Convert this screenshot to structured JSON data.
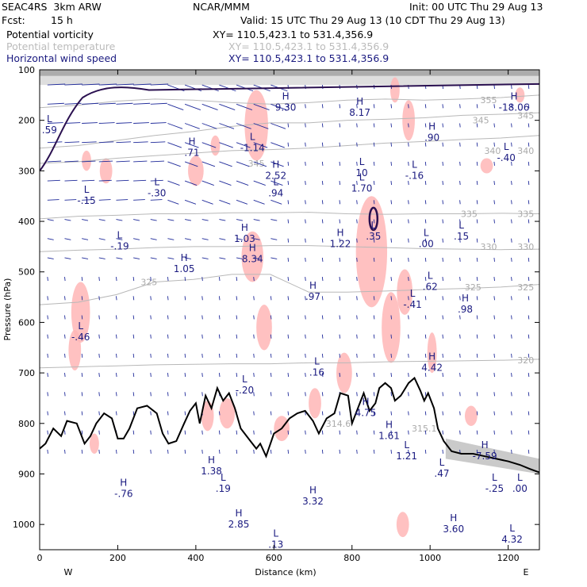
{
  "header": {
    "model": "SEAC4RS  3km ARW",
    "org": "NCAR/MMM",
    "init": "Init: 00 UTC Thu 29 Aug 13",
    "fcst_label": "Fcst:",
    "fcst_value": "15 h",
    "valid": "Valid: 15 UTC Thu 29 Aug 13 (10 CDT Thu 29 Aug 13)"
  },
  "fields": [
    {
      "name": "Potential vorticity",
      "xy": "XY= 110.5,423.1 to 531.4,356.9",
      "color": "#000000"
    },
    {
      "name": "Potential temperature",
      "xy": "XY= 110.5,423.1 to 531.4,356.9",
      "color": "#bbbbbb"
    },
    {
      "name": "Horizontal wind speed",
      "xy": "XY= 110.5,423.1 to 531.4,356.9",
      "color": "#1a1a80"
    }
  ],
  "chart_data": {
    "type": "cross-section",
    "xlabel": "Distance (km)",
    "ylabel": "Pressure (hPa)",
    "xlim": [
      0,
      1280
    ],
    "ylim": [
      1050,
      100
    ],
    "x_ticks": [
      0,
      200,
      400,
      600,
      800,
      1000,
      1200
    ],
    "y_ticks": [
      100,
      200,
      300,
      400,
      500,
      600,
      700,
      800,
      900,
      1000
    ],
    "end_labels": {
      "left": "W",
      "right": "E"
    },
    "terrain": [
      [
        0,
        850
      ],
      [
        15,
        840
      ],
      [
        35,
        810
      ],
      [
        55,
        825
      ],
      [
        70,
        795
      ],
      [
        95,
        800
      ],
      [
        115,
        840
      ],
      [
        130,
        825
      ],
      [
        145,
        800
      ],
      [
        165,
        780
      ],
      [
        185,
        790
      ],
      [
        200,
        830
      ],
      [
        215,
        830
      ],
      [
        230,
        810
      ],
      [
        250,
        770
      ],
      [
        275,
        765
      ],
      [
        300,
        780
      ],
      [
        315,
        820
      ],
      [
        330,
        840
      ],
      [
        350,
        835
      ],
      [
        370,
        800
      ],
      [
        385,
        775
      ],
      [
        400,
        760
      ],
      [
        410,
        800
      ],
      [
        425,
        745
      ],
      [
        440,
        770
      ],
      [
        455,
        730
      ],
      [
        470,
        755
      ],
      [
        485,
        740
      ],
      [
        500,
        770
      ],
      [
        515,
        810
      ],
      [
        540,
        835
      ],
      [
        555,
        850
      ],
      [
        565,
        840
      ],
      [
        580,
        865
      ],
      [
        600,
        820
      ],
      [
        620,
        810
      ],
      [
        640,
        790
      ],
      [
        660,
        780
      ],
      [
        680,
        775
      ],
      [
        700,
        795
      ],
      [
        715,
        820
      ],
      [
        735,
        790
      ],
      [
        755,
        780
      ],
      [
        770,
        740
      ],
      [
        790,
        745
      ],
      [
        800,
        800
      ],
      [
        815,
        770
      ],
      [
        830,
        740
      ],
      [
        845,
        775
      ],
      [
        860,
        760
      ],
      [
        870,
        730
      ],
      [
        885,
        720
      ],
      [
        900,
        730
      ],
      [
        910,
        755
      ],
      [
        925,
        745
      ],
      [
        945,
        720
      ],
      [
        960,
        710
      ],
      [
        975,
        735
      ],
      [
        985,
        755
      ],
      [
        995,
        740
      ],
      [
        1010,
        770
      ],
      [
        1020,
        810
      ],
      [
        1035,
        835
      ],
      [
        1055,
        855
      ],
      [
        1080,
        860
      ],
      [
        1110,
        860
      ],
      [
        1140,
        865
      ],
      [
        1170,
        870
      ],
      [
        1200,
        875
      ],
      [
        1230,
        882
      ],
      [
        1255,
        890
      ],
      [
        1280,
        897
      ]
    ],
    "isentropes": [
      {
        "value": "355",
        "y": [
          175,
          170,
          162,
          158,
          160,
          165,
          168,
          165,
          160,
          158,
          160,
          158,
          155,
          150
        ]
      },
      {
        "value": "345",
        "y": [
          255,
          250,
          240,
          230,
          222,
          212,
          205,
          205,
          200,
          198,
          195,
          190,
          188,
          185
        ]
      },
      {
        "value": "340",
        "y": [
          285,
          282,
          275,
          270,
          265,
          260,
          258,
          255,
          250,
          245,
          242,
          238,
          235,
          230
        ]
      },
      {
        "value": "335",
        "y": [
          395,
          390,
          388,
          385,
          385,
          383,
          383,
          382,
          385,
          386,
          385,
          385,
          384,
          385
        ]
      },
      {
        "value": "330",
        "y": [
          460,
          457,
          455,
          452,
          450,
          450,
          448,
          448,
          450,
          452,
          454,
          455,
          456,
          455
        ]
      },
      {
        "value": "325",
        "y": [
          565,
          560,
          545,
          520,
          515,
          505,
          505,
          540,
          540,
          538,
          535,
          533,
          530,
          525
        ]
      },
      {
        "value": "320",
        "y": [
          690,
          688,
          686,
          684,
          683,
          682,
          682,
          680,
          680,
          678,
          677,
          676,
          675,
          673
        ]
      }
    ],
    "isentrope_labels": [
      {
        "text": "355",
        "x": 1150,
        "p": 160
      },
      {
        "text": "345",
        "x": 1130,
        "p": 200
      },
      {
        "text": "345",
        "x": 1245,
        "p": 190
      },
      {
        "text": "345",
        "x": 555,
        "p": 285
      },
      {
        "text": "340",
        "x": 1160,
        "p": 260
      },
      {
        "text": "340",
        "x": 1245,
        "p": 260
      },
      {
        "text": "335",
        "x": 1100,
        "p": 385
      },
      {
        "text": "335",
        "x": 1245,
        "p": 385
      },
      {
        "text": "330",
        "x": 1150,
        "p": 450
      },
      {
        "text": "330",
        "x": 1245,
        "p": 450
      },
      {
        "text": "325",
        "x": 280,
        "p": 520
      },
      {
        "text": "325",
        "x": 1110,
        "p": 530
      },
      {
        "text": "325",
        "x": 1245,
        "p": 530
      },
      {
        "text": "320",
        "x": 1245,
        "p": 675
      },
      {
        "text": "315.1",
        "x": 985,
        "p": 810
      },
      {
        "text": "314.6",
        "x": 765,
        "p": 800
      }
    ],
    "extrema": [
      {
        "kind": "H",
        "value": "9.30",
        "x": 630,
        "p": 165
      },
      {
        "kind": "H",
        "value": "8.17",
        "x": 820,
        "p": 175
      },
      {
        "kind": "H",
        "value": ".90",
        "x": 1005,
        "p": 225
      },
      {
        "kind": "H",
        "value": "-18.06",
        "x": 1215,
        "p": 165
      },
      {
        "kind": "H",
        "value": ".71",
        "x": 390,
        "p": 255
      },
      {
        "kind": "L",
        "value": "-1.14",
        "x": 545,
        "p": 245
      },
      {
        "kind": "L",
        "value": "-.40",
        "x": 1195,
        "p": 265
      },
      {
        "kind": "H",
        "value": "2.52",
        "x": 605,
        "p": 300
      },
      {
        "kind": "L",
        "value": "10",
        "x": 825,
        "p": 295
      },
      {
        "kind": "L",
        "value": "1.70",
        "x": 825,
        "p": 325
      },
      {
        "kind": "L",
        "value": "-.16",
        "x": 960,
        "p": 300
      },
      {
        "kind": "L",
        "value": ".94",
        "x": 605,
        "p": 335
      },
      {
        "kind": "L",
        "value": "-.15",
        "x": 120,
        "p": 350
      },
      {
        "kind": "L",
        "value": "-.30",
        "x": 300,
        "p": 335
      },
      {
        "kind": "H",
        "value": "1.03",
        "x": 525,
        "p": 425
      },
      {
        "kind": "H",
        "value": "8.34",
        "x": 545,
        "p": 465
      },
      {
        "kind": "H",
        "value": "1.22",
        "x": 770,
        "p": 435
      },
      {
        "kind": "L",
        "value": ".35",
        "x": 855,
        "p": 420
      },
      {
        "kind": "L",
        "value": ".00",
        "x": 990,
        "p": 435
      },
      {
        "kind": "L",
        "value": ".15",
        "x": 1080,
        "p": 420
      },
      {
        "kind": "L",
        "value": "-.19",
        "x": 205,
        "p": 440
      },
      {
        "kind": "H",
        "value": "1.05",
        "x": 370,
        "p": 485
      },
      {
        "kind": "L",
        "value": ".62",
        "x": 1000,
        "p": 520
      },
      {
        "kind": "H",
        "value": ".97",
        "x": 700,
        "p": 540
      },
      {
        "kind": "L",
        "value": "-.41",
        "x": 955,
        "p": 555
      },
      {
        "kind": "H",
        "value": ".98",
        "x": 1090,
        "p": 565
      },
      {
        "kind": "L",
        "value": "-.46",
        "x": 105,
        "p": 620
      },
      {
        "kind": "L",
        "value": "-.20",
        "x": 525,
        "p": 725
      },
      {
        "kind": "L",
        "value": ".16",
        "x": 710,
        "p": 690
      },
      {
        "kind": "H",
        "value": "4.42",
        "x": 1005,
        "p": 680
      },
      {
        "kind": "H",
        "value": "4.75",
        "x": 835,
        "p": 770
      },
      {
        "kind": "H",
        "value": "1.61",
        "x": 895,
        "p": 815
      },
      {
        "kind": "L",
        "value": "1.21",
        "x": 940,
        "p": 855
      },
      {
        "kind": "H",
        "value": "-7.59",
        "x": 1140,
        "p": 855
      },
      {
        "kind": "L",
        "value": ".47",
        "x": 1030,
        "p": 890
      },
      {
        "kind": "L",
        "value": "-.25",
        "x": 1165,
        "p": 920
      },
      {
        "kind": "L",
        "value": ".00",
        "x": 1230,
        "p": 920
      },
      {
        "kind": "H",
        "value": "1.38",
        "x": 440,
        "p": 885
      },
      {
        "kind": "L",
        "value": ".19",
        "x": 470,
        "p": 920
      },
      {
        "kind": "H",
        "value": "-.76",
        "x": 215,
        "p": 930
      },
      {
        "kind": "H",
        "value": "3.32",
        "x": 700,
        "p": 945
      },
      {
        "kind": "H",
        "value": "2.85",
        "x": 510,
        "p": 990
      },
      {
        "kind": "H",
        "value": "3.60",
        "x": 1060,
        "p": 1000
      },
      {
        "kind": "L",
        "value": "4.32",
        "x": 1210,
        "p": 1020
      },
      {
        "kind": "L",
        "value": ".13",
        "x": 605,
        "p": 1030
      },
      {
        "kind": "L",
        "value": ".59",
        "x": 25,
        "p": 210
      }
    ]
  }
}
